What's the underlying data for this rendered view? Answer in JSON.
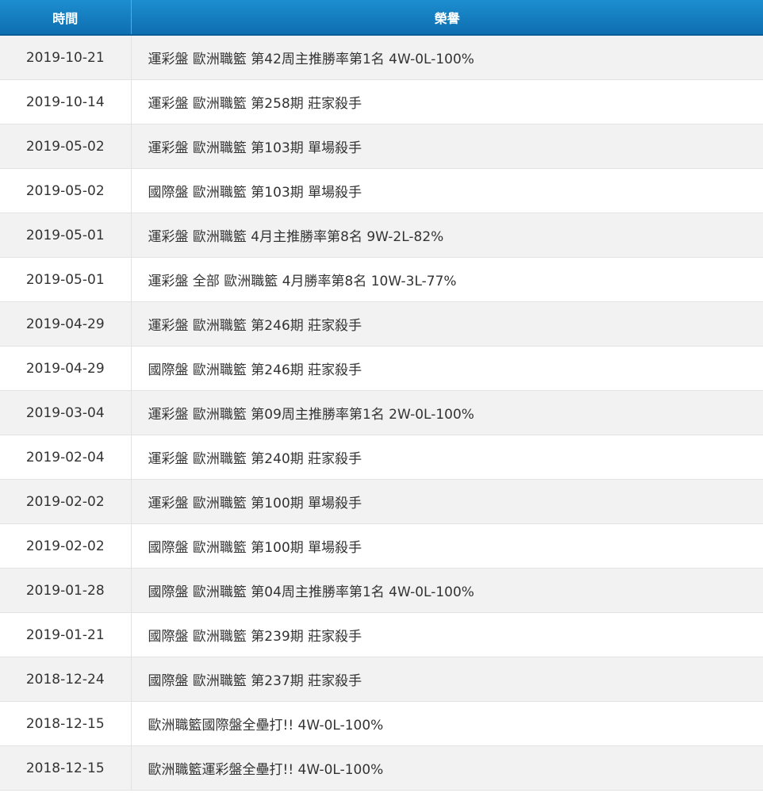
{
  "table": {
    "headers": {
      "time": "時間",
      "honor": "榮譽"
    },
    "rows": [
      {
        "date": "2019-10-21",
        "honor": "運彩盤 歐洲職籃 第42周主推勝率第1名 4W-0L-100%"
      },
      {
        "date": "2019-10-14",
        "honor": "運彩盤 歐洲職籃 第258期 莊家殺手"
      },
      {
        "date": "2019-05-02",
        "honor": "運彩盤 歐洲職籃 第103期 單場殺手"
      },
      {
        "date": "2019-05-02",
        "honor": "國際盤 歐洲職籃 第103期 單場殺手"
      },
      {
        "date": "2019-05-01",
        "honor": "運彩盤 歐洲職籃 4月主推勝率第8名 9W-2L-82%"
      },
      {
        "date": "2019-05-01",
        "honor": "運彩盤 全部 歐洲職籃 4月勝率第8名 10W-3L-77%"
      },
      {
        "date": "2019-04-29",
        "honor": "運彩盤 歐洲職籃 第246期 莊家殺手"
      },
      {
        "date": "2019-04-29",
        "honor": "國際盤 歐洲職籃 第246期 莊家殺手"
      },
      {
        "date": "2019-03-04",
        "honor": "運彩盤 歐洲職籃 第09周主推勝率第1名 2W-0L-100%"
      },
      {
        "date": "2019-02-04",
        "honor": "運彩盤 歐洲職籃 第240期 莊家殺手"
      },
      {
        "date": "2019-02-02",
        "honor": "運彩盤 歐洲職籃 第100期 單場殺手"
      },
      {
        "date": "2019-02-02",
        "honor": "國際盤 歐洲職籃 第100期 單場殺手"
      },
      {
        "date": "2019-01-28",
        "honor": "國際盤 歐洲職籃 第04周主推勝率第1名 4W-0L-100%"
      },
      {
        "date": "2019-01-21",
        "honor": "國際盤 歐洲職籃 第239期 莊家殺手"
      },
      {
        "date": "2018-12-24",
        "honor": "國際盤 歐洲職籃 第237期 莊家殺手"
      },
      {
        "date": "2018-12-15",
        "honor": "歐洲職籃國際盤全壘打!! 4W-0L-100%"
      },
      {
        "date": "2018-12-15",
        "honor": "歐洲職籃運彩盤全壘打!! 4W-0L-100%"
      }
    ]
  }
}
